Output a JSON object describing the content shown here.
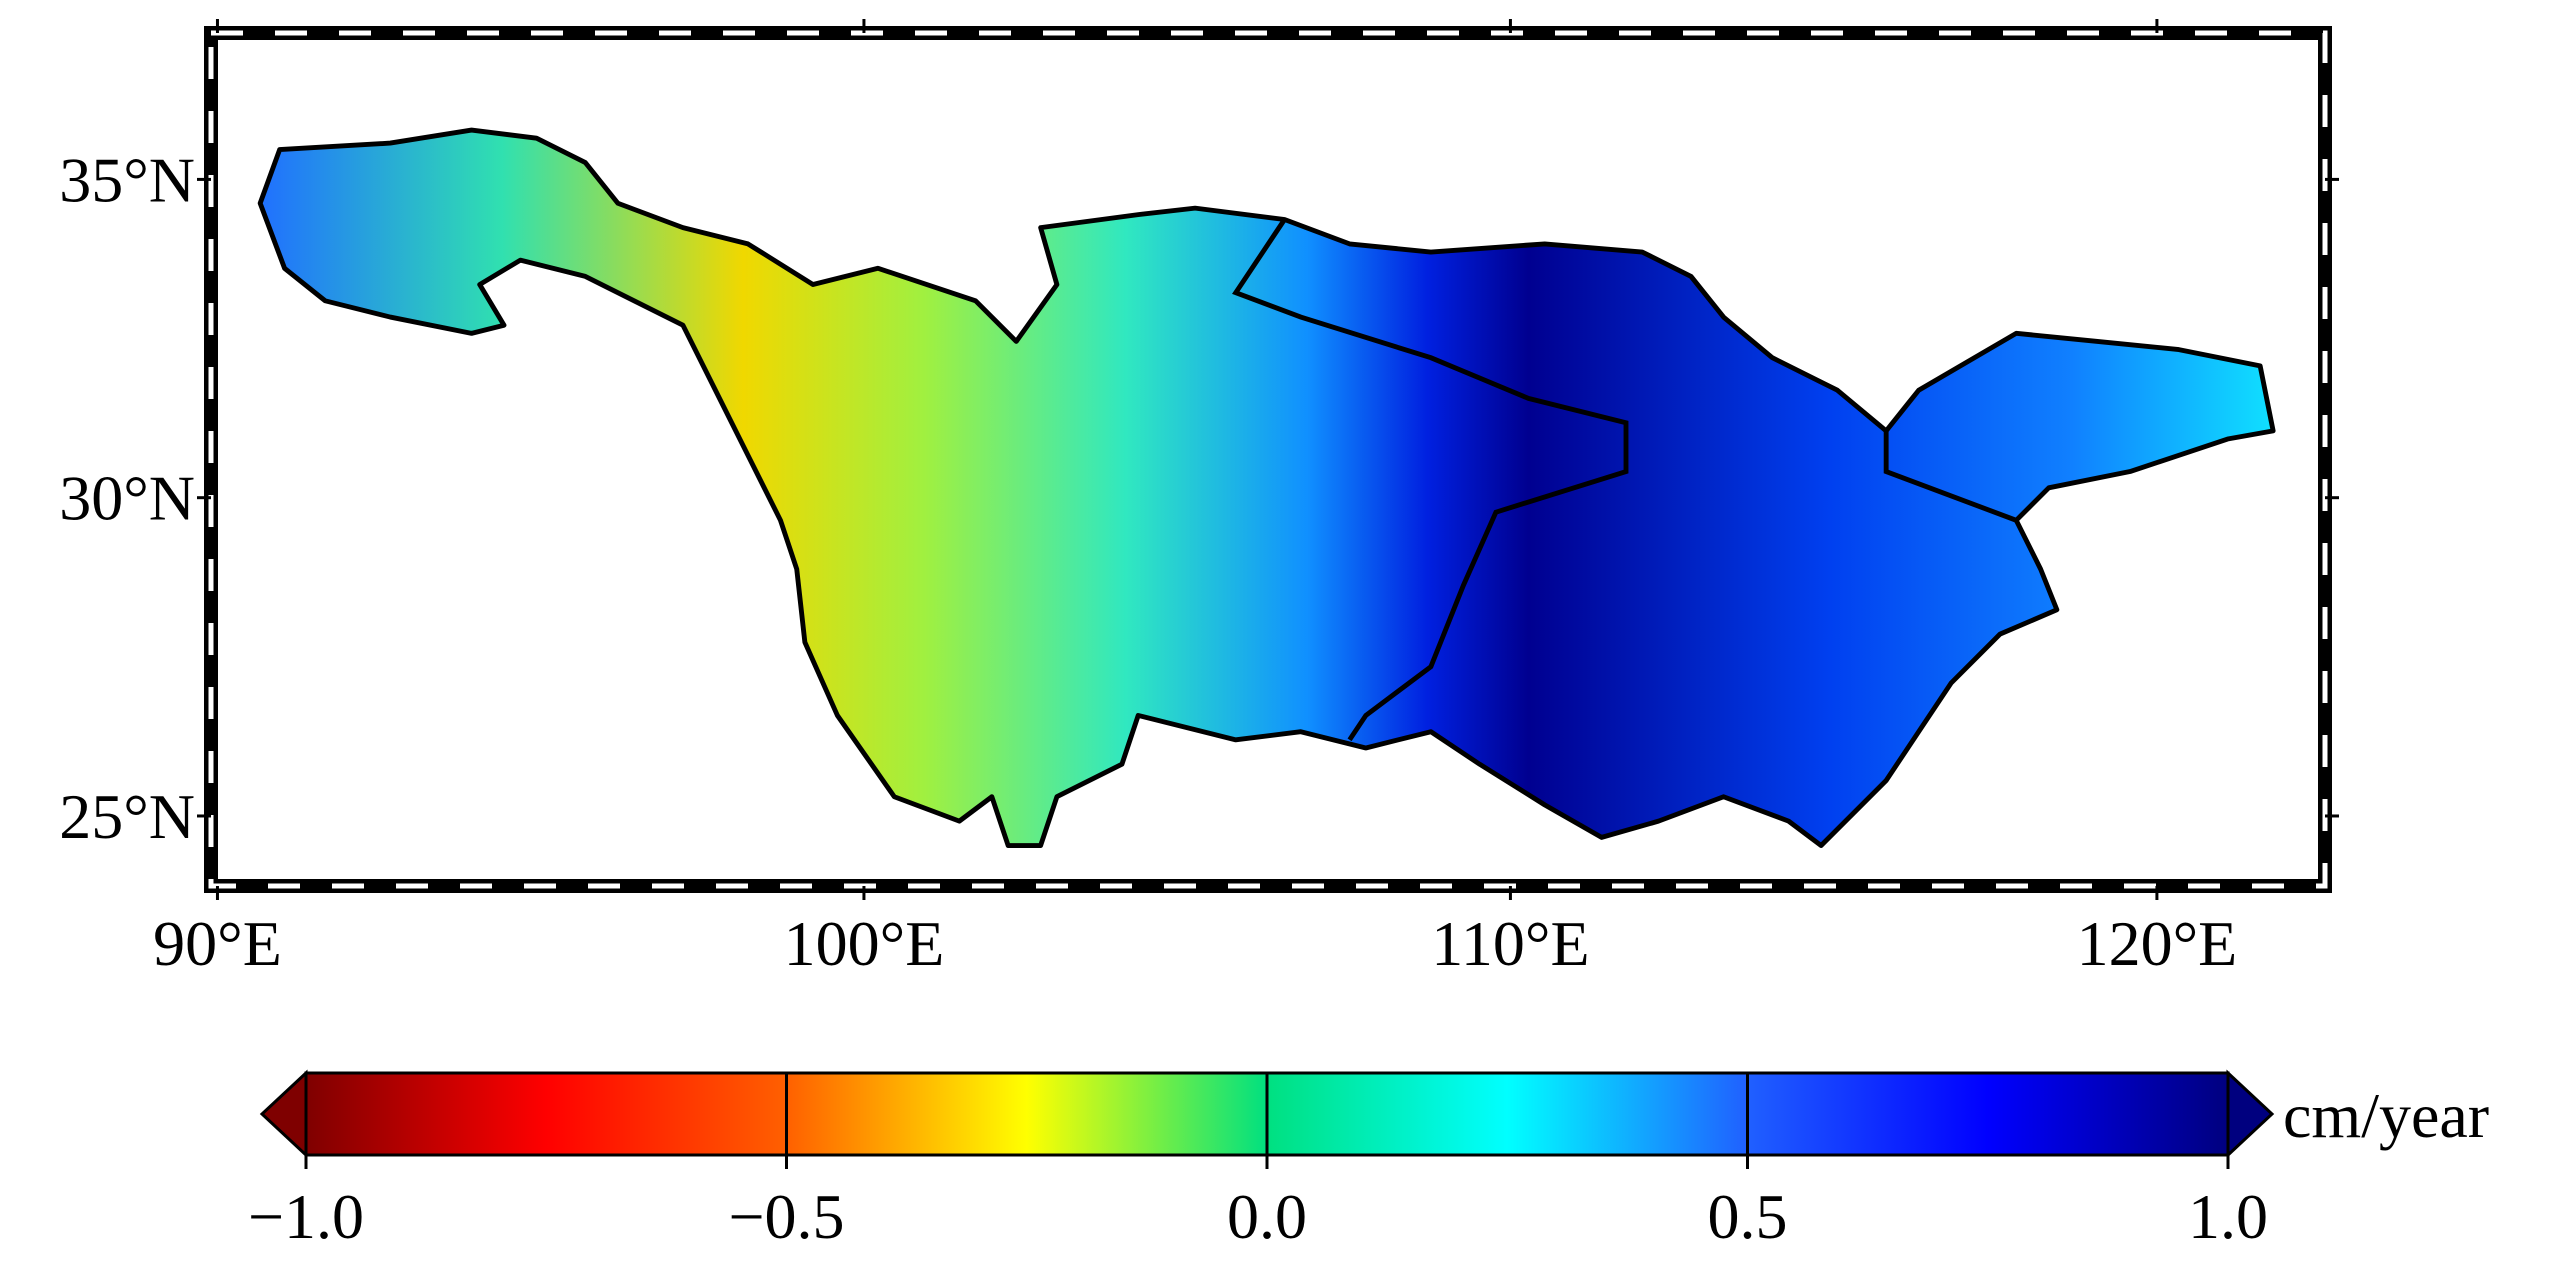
{
  "map": {
    "lon_range": [
      89.9,
      122.6
    ],
    "lat_range": [
      23.9,
      37.3
    ],
    "lon_ticks": [
      {
        "value": 90,
        "label": "90°E"
      },
      {
        "value": 100,
        "label": "100°E"
      },
      {
        "value": 110,
        "label": "110°E"
      },
      {
        "value": 120,
        "label": "120°E"
      }
    ],
    "lat_ticks": [
      {
        "value": 25,
        "label": "25°N"
      },
      {
        "value": 30,
        "label": "30°N"
      },
      {
        "value": 35,
        "label": "35°N"
      }
    ]
  },
  "colorbar": {
    "range": [
      -1,
      1
    ],
    "unit": "cm/year",
    "ticks": [
      {
        "value": -1,
        "label": "−1.0"
      },
      {
        "value": -0.5,
        "label": "−0.5"
      },
      {
        "value": 0,
        "label": "0.0"
      },
      {
        "value": 0.5,
        "label": "0.5"
      },
      {
        "value": 1,
        "label": "1.0"
      }
    ]
  }
}
